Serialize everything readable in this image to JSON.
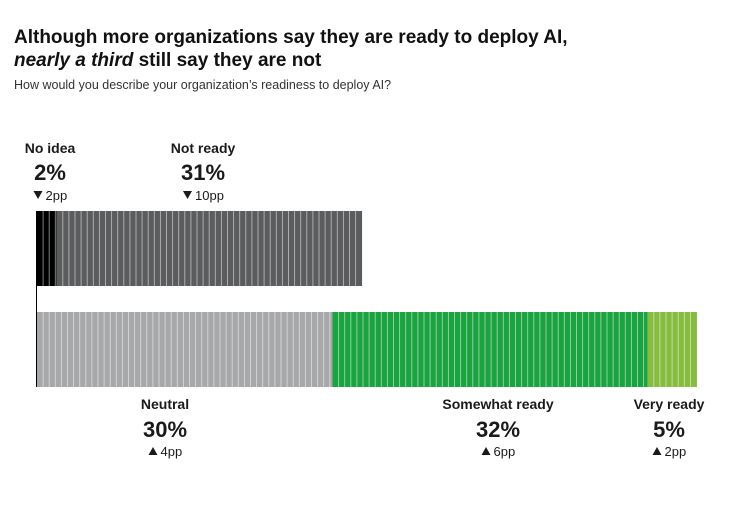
{
  "title": {
    "line1": "Although more organizations say they are ready to deploy AI,",
    "line2_em": "nearly a third",
    "line2_rest": " still say they are not"
  },
  "subtitle": "How would you describe your organization’s readiness to deploy AI?",
  "chart_data": {
    "type": "bar",
    "orientation": "horizontal-stacked",
    "title": "Although more organizations say they are ready to deploy AI, nearly a third still say they are not",
    "subtitle": "How would you describe your organization’s readiness to deploy AI?",
    "unit": "%",
    "segments": [
      {
        "name": "No idea",
        "value": 2,
        "value_label": "2%",
        "change": -2,
        "change_label": "2pp",
        "direction": "down",
        "row": "top",
        "color": "#000000"
      },
      {
        "name": "Not ready",
        "value": 31,
        "value_label": "31%",
        "change": -10,
        "change_label": "10pp",
        "direction": "down",
        "row": "top",
        "color": "#5a5c5e"
      },
      {
        "name": "Neutral",
        "value": 30,
        "value_label": "30%",
        "change": 4,
        "change_label": "4pp",
        "direction": "up",
        "row": "bottom",
        "color": "#a7a8aa"
      },
      {
        "name": "Somewhat ready",
        "value": 32,
        "value_label": "32%",
        "change": 6,
        "change_label": "6pp",
        "direction": "up",
        "row": "bottom",
        "color": "#1aa340"
      },
      {
        "name": "Very ready",
        "value": 5,
        "value_label": "5%",
        "change": 2,
        "change_label": "2pp",
        "direction": "up",
        "row": "bottom",
        "color": "#86bc3f"
      }
    ],
    "legend": "none",
    "grid": false
  }
}
